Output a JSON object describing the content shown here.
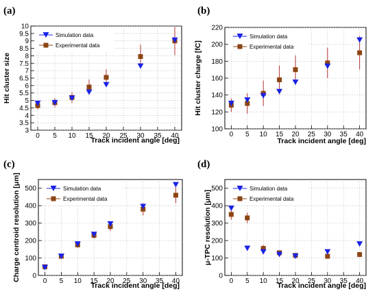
{
  "chart_data": [
    {
      "type": "scatter",
      "panel": "(a)",
      "xlabel": "Track incident angle [deg]",
      "ylabel": "Hit cluster size",
      "xlim": [
        -2,
        42
      ],
      "ylim": [
        3,
        10
      ],
      "xticks": [
        0,
        5,
        10,
        15,
        20,
        25,
        30,
        35,
        40
      ],
      "yticks": [
        3,
        3.5,
        4,
        4.5,
        5,
        5.5,
        6,
        6.5,
        7,
        7.5,
        8,
        8.5,
        9,
        9.5,
        10
      ],
      "grid": true,
      "legend_position": "top-left",
      "series": [
        {
          "name": "Simulation data",
          "marker": "triangle-down",
          "color": "#1a22e6",
          "x": [
            0,
            5,
            10,
            15,
            20,
            30,
            40
          ],
          "y": [
            4.8,
            4.85,
            5.15,
            5.55,
            6.05,
            7.3,
            9.05
          ]
        },
        {
          "name": "Experimental data",
          "marker": "square",
          "color": "#8b4513",
          "x": [
            0,
            5,
            10,
            15,
            20,
            30,
            40
          ],
          "y": [
            4.65,
            4.85,
            5.2,
            5.9,
            6.55,
            7.95,
            9.0
          ],
          "err": [
            0.25,
            0.3,
            0.35,
            0.5,
            0.55,
            0.8,
            0.95
          ]
        }
      ]
    },
    {
      "type": "scatter",
      "panel": "(b)",
      "xlabel": "Track incident angle [deg]",
      "ylabel": "Hit cluster charge [fC]",
      "xlim": [
        -2,
        42
      ],
      "ylim": [
        100,
        220
      ],
      "xticks": [
        0,
        5,
        10,
        15,
        20,
        25,
        30,
        35,
        40
      ],
      "yticks": [
        100,
        120,
        140,
        160,
        180,
        200,
        220
      ],
      "grid": true,
      "legend_position": "top-left",
      "series": [
        {
          "name": "Simulation data",
          "marker": "triangle-down",
          "color": "#1a22e6",
          "x": [
            0,
            5,
            10,
            15,
            20,
            30,
            40
          ],
          "y": [
            130,
            134,
            139,
            144,
            155,
            174,
            205
          ]
        },
        {
          "name": "Experimental data",
          "marker": "square",
          "color": "#8b4513",
          "x": [
            0,
            5,
            10,
            15,
            20,
            30,
            40
          ],
          "y": [
            128,
            130,
            142,
            158,
            170,
            178,
            190
          ],
          "err": [
            8,
            12,
            15,
            17,
            17,
            18,
            20
          ]
        }
      ]
    },
    {
      "type": "scatter",
      "panel": "(c)",
      "xlabel": "Track incident angle [deg]",
      "ylabel": "Charge centroid resolution [μm]",
      "xlim": [
        -2,
        42
      ],
      "ylim": [
        0,
        550
      ],
      "xticks": [
        0,
        5,
        10,
        15,
        20,
        25,
        30,
        35,
        40
      ],
      "yticks": [
        0,
        100,
        200,
        300,
        400,
        500
      ],
      "grid": true,
      "legend_position": "top-left",
      "series": [
        {
          "name": "Simulation data",
          "marker": "triangle-down",
          "color": "#1a22e6",
          "x": [
            0,
            5,
            10,
            15,
            20,
            30,
            40
          ],
          "y": [
            45,
            110,
            180,
            235,
            295,
            395,
            520
          ]
        },
        {
          "name": "Experimental data",
          "marker": "square",
          "color": "#8b4513",
          "x": [
            0,
            5,
            10,
            15,
            20,
            30,
            40
          ],
          "y": [
            50,
            110,
            175,
            230,
            280,
            380,
            460
          ],
          "err": [
            10,
            12,
            15,
            18,
            25,
            35,
            45
          ]
        }
      ]
    },
    {
      "type": "scatter",
      "panel": "(d)",
      "xlabel": "Track incident angle [deg]",
      "ylabel": "μ-TPC resolution [μm]",
      "xlim": [
        -2,
        42
      ],
      "ylim": [
        0,
        550
      ],
      "xticks": [
        0,
        5,
        10,
        15,
        20,
        25,
        30,
        35,
        40
      ],
      "yticks": [
        0,
        100,
        200,
        300,
        400,
        500
      ],
      "grid": true,
      "legend_position": "top-left",
      "series": [
        {
          "name": "Simulation data",
          "marker": "triangle-down",
          "color": "#1a22e6",
          "x": [
            0,
            5,
            10,
            15,
            20,
            30,
            40
          ],
          "y": [
            385,
            155,
            135,
            120,
            110,
            135,
            180
          ]
        },
        {
          "name": "Experimental data",
          "marker": "square",
          "color": "#8b4513",
          "x": [
            0,
            5,
            10,
            15,
            20,
            30,
            40
          ],
          "y": [
            350,
            330,
            155,
            130,
            115,
            110,
            120
          ],
          "err": [
            30,
            30,
            20,
            12,
            10,
            10,
            10
          ]
        }
      ]
    }
  ]
}
